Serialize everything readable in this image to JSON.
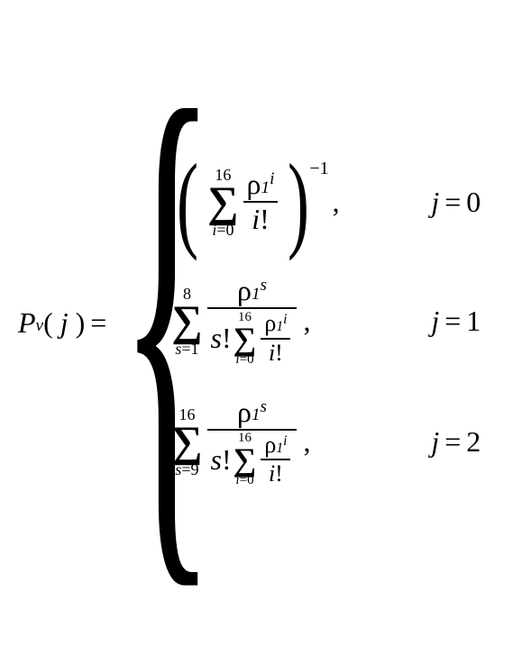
{
  "lhs": {
    "func": "P",
    "func_sub": "v",
    "arg_open": "(",
    "arg_var": "j",
    "arg_close": ")",
    "eq": "="
  },
  "case1": {
    "sum_upper": "16",
    "sum_lower_var": "i",
    "sum_lower_eq": "=",
    "sum_lower_val": "0",
    "rho_sub": "1",
    "rho_sup": "i",
    "den_var": "i",
    "den_fact": "!",
    "outer_exp": "−1",
    "cond_var": "j",
    "cond_eq": "=",
    "cond_val": "0"
  },
  "case2": {
    "outer_sum_upper": "8",
    "outer_sum_lower_var": "s",
    "outer_sum_lower_eq": "=",
    "outer_sum_lower_val": "1",
    "num_rho_sub": "1",
    "num_rho_sup": "s",
    "den_s": "s",
    "den_fact": "!",
    "inner_sum_upper": "16",
    "inner_sum_lower_var": "i",
    "inner_sum_lower_eq": "=",
    "inner_sum_lower_val": "0",
    "inner_rho_sub": "1",
    "inner_rho_sup": "i",
    "inner_den_var": "i",
    "inner_den_fact": "!",
    "cond_var": "j",
    "cond_eq": "=",
    "cond_val": "1"
  },
  "case3": {
    "outer_sum_upper": "16",
    "outer_sum_lower_var": "s",
    "outer_sum_lower_eq": "=",
    "outer_sum_lower_val": "9",
    "num_rho_sub": "1",
    "num_rho_sup": "s",
    "den_s": "s",
    "den_fact": "!",
    "inner_sum_upper": "16",
    "inner_sum_lower_var": "i",
    "inner_sum_lower_eq": "=",
    "inner_sum_lower_val": "0",
    "inner_rho_sub": "1",
    "inner_rho_sup": "i",
    "inner_den_var": "i",
    "inner_den_fact": "!",
    "cond_var": "j",
    "cond_eq": "=",
    "cond_val": "2"
  },
  "style": {
    "background_color": "#ffffff",
    "text_color": "#000000",
    "font_family": "Times New Roman",
    "base_fontsize_pt": 24,
    "limit_fontsize_pt": 14,
    "sigma_fontsize_pt": 36
  }
}
